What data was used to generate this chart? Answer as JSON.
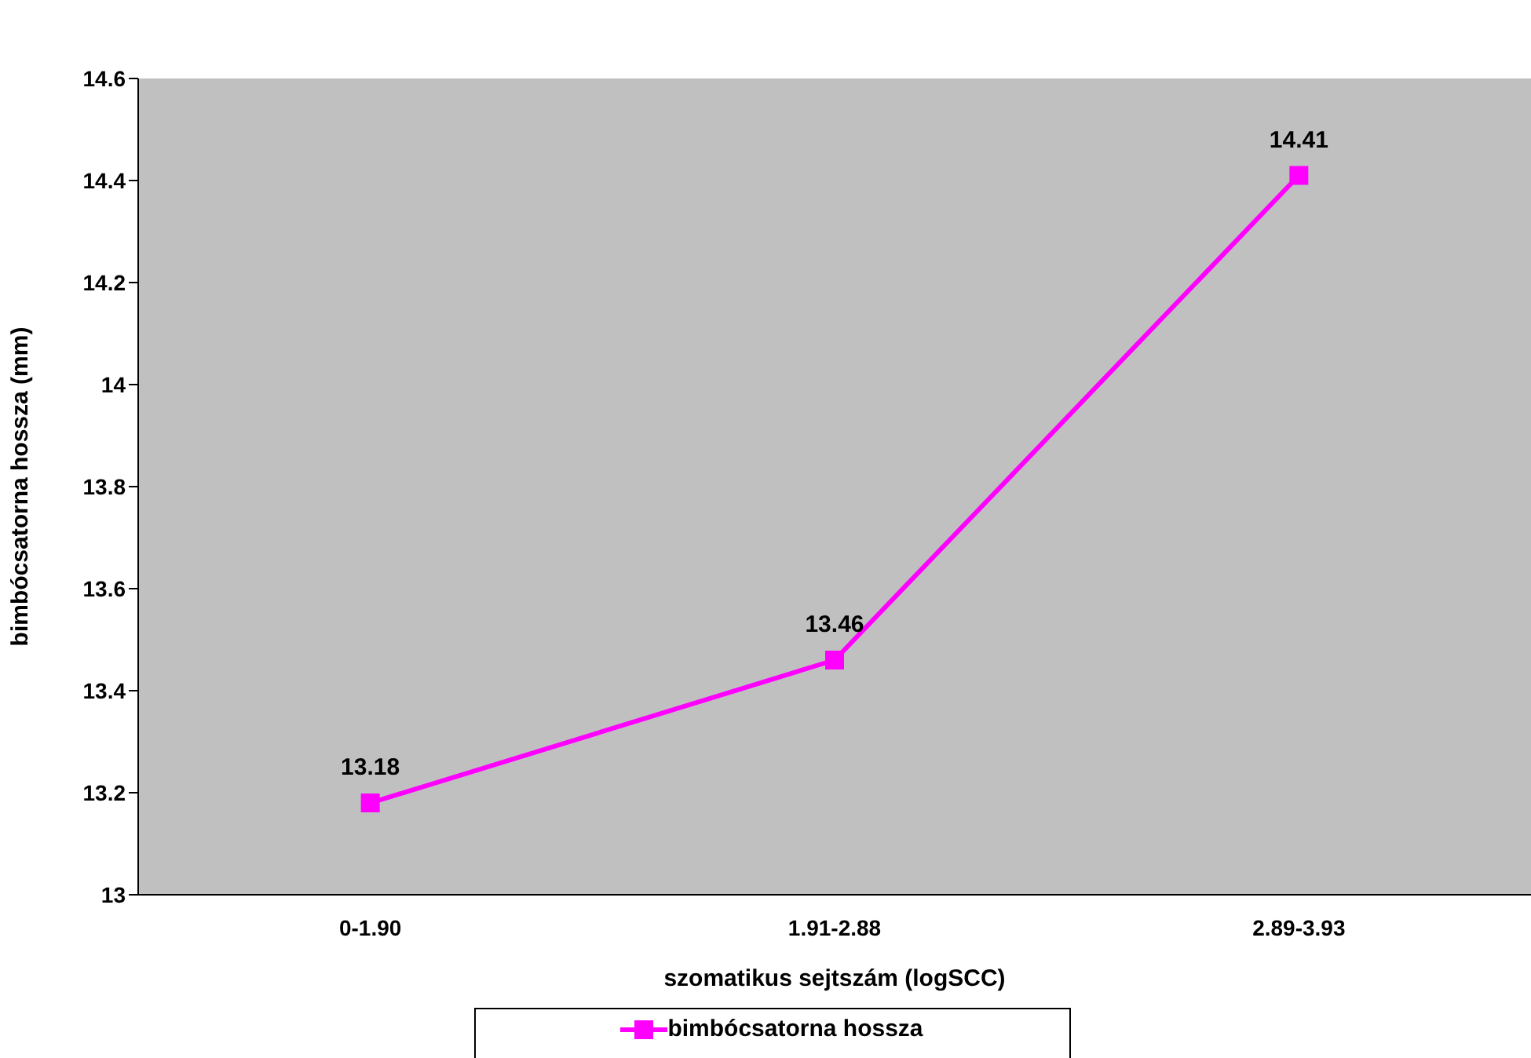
{
  "chart_data": {
    "type": "line",
    "xlabel": "szomatikus sejtszám (logSCC)",
    "ylabel": "bimbócsatorna hossza (mm)",
    "categories": [
      "0-1.90",
      "1.91-2.88",
      "2.89-3.93"
    ],
    "series": [
      {
        "name": "bimbócsatorna hossza",
        "color": "#ff00ff",
        "values": [
          13.18,
          13.46,
          14.41
        ]
      }
    ],
    "ylim": [
      13,
      14.6
    ],
    "yticks": [
      13,
      13.2,
      13.4,
      13.6,
      13.8,
      14,
      14.2,
      14.4,
      14.6
    ],
    "grid": false,
    "legend": "bottom",
    "marker": "square",
    "line_style": "solid",
    "data_labels": true
  }
}
